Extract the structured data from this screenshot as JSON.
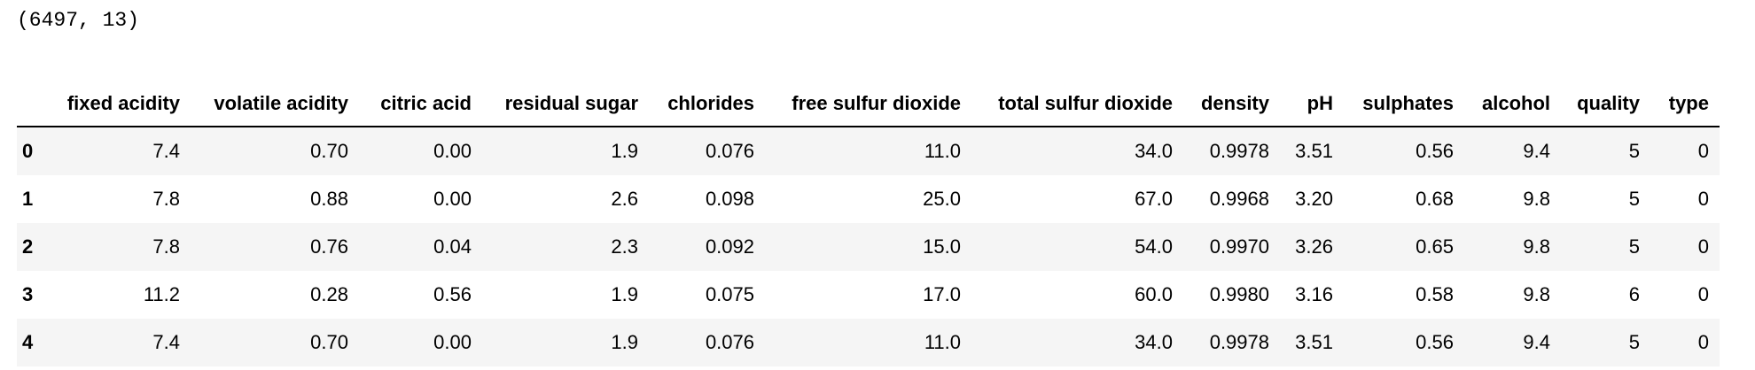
{
  "shape": "(6497, 13)",
  "table": {
    "columns": [
      "fixed acidity",
      "volatile acidity",
      "citric acid",
      "residual sugar",
      "chlorides",
      "free sulfur dioxide",
      "total sulfur dioxide",
      "density",
      "pH",
      "sulphates",
      "alcohol",
      "quality",
      "type"
    ],
    "index": [
      "0",
      "1",
      "2",
      "3",
      "4"
    ],
    "rows": [
      [
        "7.4",
        "0.70",
        "0.00",
        "1.9",
        "0.076",
        "11.0",
        "34.0",
        "0.9978",
        "3.51",
        "0.56",
        "9.4",
        "5",
        "0"
      ],
      [
        "7.8",
        "0.88",
        "0.00",
        "2.6",
        "0.098",
        "25.0",
        "67.0",
        "0.9968",
        "3.20",
        "0.68",
        "9.8",
        "5",
        "0"
      ],
      [
        "7.8",
        "0.76",
        "0.04",
        "2.3",
        "0.092",
        "15.0",
        "54.0",
        "0.9970",
        "3.26",
        "0.65",
        "9.8",
        "5",
        "0"
      ],
      [
        "11.2",
        "0.28",
        "0.56",
        "1.9",
        "0.075",
        "17.0",
        "60.0",
        "0.9980",
        "3.16",
        "0.58",
        "9.8",
        "6",
        "0"
      ],
      [
        "7.4",
        "0.70",
        "0.00",
        "1.9",
        "0.076",
        "11.0",
        "34.0",
        "0.9978",
        "3.51",
        "0.56",
        "9.4",
        "5",
        "0"
      ]
    ]
  }
}
